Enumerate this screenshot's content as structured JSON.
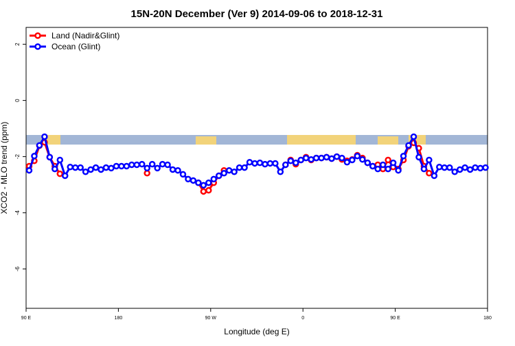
{
  "chart_data": {
    "type": "line",
    "title": "15N-20N December (Ver 9)   2014-09-06 to 2018-12-31",
    "x_label": "Longitude (deg E)",
    "y_label": "XCO2 - MLO trend (ppm)",
    "x": [
      93,
      98,
      103,
      108,
      113,
      118,
      123,
      128,
      133,
      138,
      143,
      148,
      153,
      158,
      163,
      168,
      173,
      178,
      183,
      188,
      193,
      198,
      203,
      208,
      213,
      218,
      223,
      228,
      233,
      238,
      243,
      248,
      253,
      258,
      263,
      268,
      273,
      278,
      283,
      288,
      293,
      298,
      303,
      308,
      313,
      318,
      323,
      328,
      333,
      338,
      343,
      348,
      353,
      358,
      363,
      368,
      373,
      378,
      383,
      388,
      393,
      398,
      403,
      408,
      413,
      418,
      423,
      428,
      433,
      438,
      443,
      448,
      453,
      458,
      463,
      468,
      473,
      478,
      483,
      488,
      493,
      498,
      503,
      508,
      513,
      518,
      523,
      528,
      533,
      538
    ],
    "series": [
      {
        "name": "Land (Nadir&Glint)",
        "color": "#ff0000",
        "values": [
          -2.34,
          -2.15,
          -1.61,
          -1.49,
          -2.02,
          -2.34,
          -2.61,
          null,
          null,
          null,
          null,
          null,
          null,
          null,
          null,
          null,
          null,
          null,
          null,
          null,
          null,
          null,
          null,
          -2.59,
          null,
          null,
          null,
          null,
          null,
          null,
          null,
          null,
          null,
          -2.93,
          -3.24,
          -3.2,
          -2.93,
          -2.68,
          -2.49,
          null,
          null,
          null,
          null,
          null,
          null,
          null,
          null,
          null,
          null,
          null,
          -2.29,
          -2.12,
          -2.27,
          -2.12,
          -2.02,
          -2.12,
          -2.05,
          -2.05,
          -2.02,
          -2.07,
          -2.0,
          -2.1,
          -2.15,
          -2.1,
          -1.95,
          -2.05,
          -2.22,
          -2.34,
          -2.29,
          -2.44,
          -2.12,
          -2.37,
          -2.44,
          -2.12,
          -1.63,
          -1.51,
          -1.7,
          -2.34,
          -2.59,
          null,
          null,
          null,
          null,
          null,
          null,
          null,
          null,
          null,
          null,
          null
        ]
      },
      {
        "name": "Ocean (Glint)",
        "color": "#0000ff",
        "values": [
          -2.49,
          -1.98,
          -1.6,
          -1.29,
          -2.02,
          -2.44,
          -2.12,
          -2.68,
          -2.37,
          -2.39,
          -2.39,
          -2.54,
          -2.46,
          -2.39,
          -2.46,
          -2.39,
          -2.41,
          -2.34,
          -2.34,
          -2.34,
          -2.29,
          -2.29,
          -2.27,
          -2.41,
          -2.27,
          -2.41,
          -2.27,
          -2.29,
          -2.46,
          -2.49,
          -2.63,
          -2.8,
          -2.85,
          -2.93,
          -3.02,
          -2.93,
          -2.8,
          -2.68,
          -2.59,
          -2.49,
          -2.54,
          -2.39,
          -2.39,
          -2.2,
          -2.24,
          -2.22,
          -2.27,
          -2.24,
          -2.24,
          -2.54,
          -2.29,
          -2.15,
          -2.22,
          -2.12,
          -2.05,
          -2.1,
          -2.05,
          -2.05,
          -2.02,
          -2.07,
          -2.0,
          -2.05,
          -2.2,
          -2.12,
          -1.98,
          -2.1,
          -2.22,
          -2.34,
          -2.44,
          -2.29,
          -2.44,
          -2.22,
          -2.49,
          -1.98,
          -1.6,
          -1.29,
          -2.02,
          -2.44,
          -2.12,
          -2.68,
          -2.37,
          -2.39,
          -2.39,
          -2.54,
          -2.46,
          -2.39,
          -2.46,
          -2.39,
          -2.41,
          -2.39
        ]
      }
    ],
    "xlim": [
      90,
      540
    ],
    "xticks": [
      {
        "value": 90,
        "label": "90 E"
      },
      180,
      {
        "value": 270,
        "label": "90 W"
      },
      {
        "value": 360,
        "label": "0"
      },
      {
        "value": 450,
        "label": "90 E"
      },
      {
        "value": 540,
        "label": "180"
      }
    ],
    "ylim": [
      -7.4,
      2.6
    ],
    "yticks": [
      -6,
      -4,
      -2,
      0,
      2
    ],
    "legend": "top-left"
  }
}
